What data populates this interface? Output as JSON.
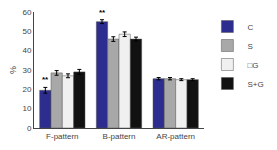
{
  "chart_data": {
    "type": "bar",
    "categories": [
      "F-pattern",
      "B-pattern",
      "AR-pattern"
    ],
    "series": [
      {
        "name": "C",
        "color": "#2d2d8f",
        "values": [
          19.5,
          55.0,
          25.5
        ],
        "errors": [
          1.5,
          1.0,
          0.6
        ]
      },
      {
        "name": "S",
        "color": "#a8a8a8",
        "values": [
          28.5,
          46.0,
          25.5
        ],
        "errors": [
          1.2,
          1.2,
          0.6
        ]
      },
      {
        "name": "□G",
        "color": "#f0f0f0",
        "values": [
          27.0,
          48.5,
          25.0
        ],
        "errors": [
          1.0,
          1.2,
          0.5
        ]
      },
      {
        "name": "S+G",
        "color": "#111111",
        "values": [
          29.0,
          46.0,
          25.0
        ],
        "errors": [
          1.3,
          1.0,
          0.5
        ]
      }
    ],
    "ylabel": "%",
    "ylim": [
      0,
      60
    ],
    "yticks": [
      0,
      10,
      20,
      30,
      40,
      50,
      60
    ],
    "grid": false,
    "legend": "upper right",
    "annotations": [
      {
        "category": "F-pattern",
        "series": "C",
        "text": "**"
      },
      {
        "category": "B-pattern",
        "series": "C",
        "text": "**"
      }
    ]
  }
}
